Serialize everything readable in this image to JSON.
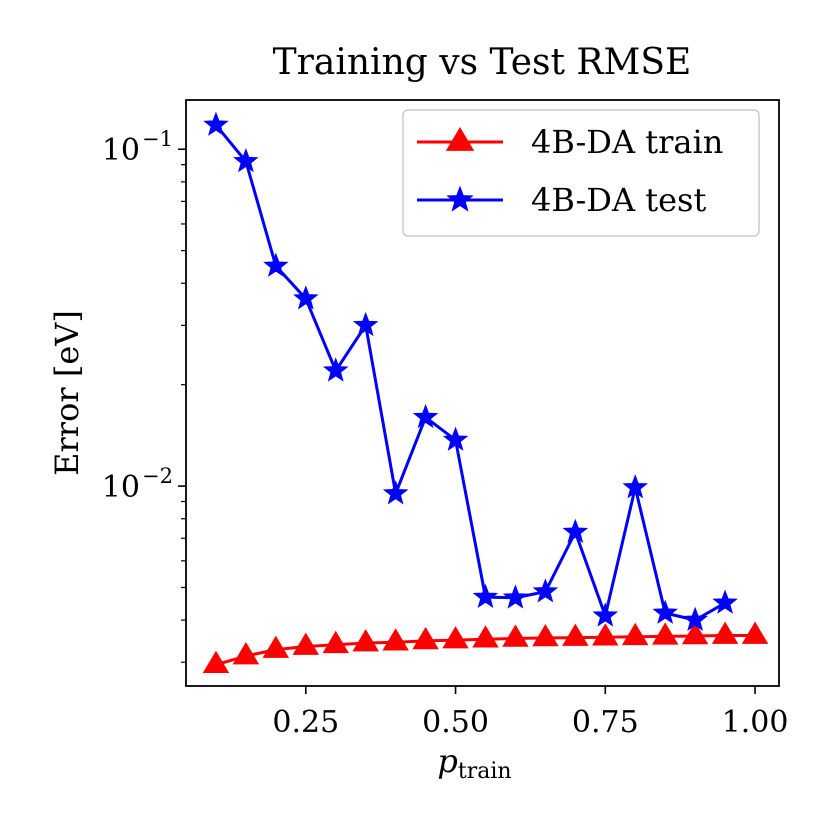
{
  "chart_data": {
    "type": "line",
    "title": "Training vs Test RMSE",
    "xlabel": "p",
    "xlabel_sub": "train",
    "ylabel": "Error [eV]",
    "yscale": "log",
    "xlim": [
      0.05,
      1.04
    ],
    "ylim": [
      0.00255,
      0.14
    ],
    "x_ticks": [
      {
        "value": 0.25,
        "label": "0.25"
      },
      {
        "value": 0.5,
        "label": "0.50"
      },
      {
        "value": 0.75,
        "label": "0.75"
      },
      {
        "value": 1.0,
        "label": "1.00"
      }
    ],
    "y_major_ticks": [
      {
        "value": 0.1,
        "base": "10",
        "exp": "−1"
      },
      {
        "value": 0.01,
        "base": "10",
        "exp": "−2"
      }
    ],
    "y_minor_ticks": [
      0.003,
      0.004,
      0.005,
      0.006,
      0.007,
      0.008,
      0.009,
      0.02,
      0.03,
      0.04,
      0.05,
      0.06,
      0.07,
      0.08,
      0.09
    ],
    "legend_position": "top-right",
    "series": [
      {
        "name": "4B-DA train",
        "color": "#ff0000",
        "marker": "triangle",
        "x": [
          0.1,
          0.15,
          0.2,
          0.25,
          0.3,
          0.35,
          0.4,
          0.45,
          0.5,
          0.55,
          0.6,
          0.65,
          0.7,
          0.75,
          0.8,
          0.85,
          0.9,
          0.95,
          1.0
        ],
        "y": [
          0.00295,
          0.00313,
          0.00327,
          0.00334,
          0.00338,
          0.00342,
          0.00344,
          0.00347,
          0.00349,
          0.00351,
          0.00353,
          0.00354,
          0.00355,
          0.00356,
          0.00357,
          0.00358,
          0.00359,
          0.0036,
          0.0036
        ]
      },
      {
        "name": "4B-DA test",
        "color": "#0000ff",
        "marker": "star",
        "x": [
          0.1,
          0.15,
          0.2,
          0.25,
          0.3,
          0.35,
          0.4,
          0.45,
          0.5,
          0.55,
          0.6,
          0.65,
          0.7,
          0.75,
          0.8,
          0.85,
          0.9,
          0.95
        ],
        "y": [
          0.118,
          0.092,
          0.045,
          0.036,
          0.022,
          0.03,
          0.0095,
          0.016,
          0.0137,
          0.00468,
          0.00466,
          0.00486,
          0.0073,
          0.00412,
          0.0099,
          0.0042,
          0.004,
          0.0045
        ]
      }
    ]
  }
}
